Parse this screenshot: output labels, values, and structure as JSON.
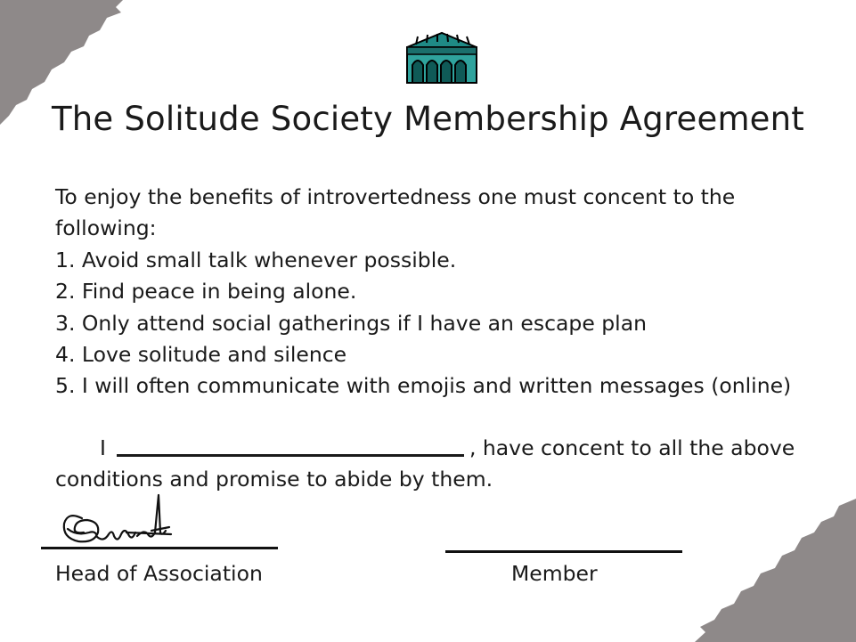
{
  "document": {
    "title": "The Solitude Society Membership Agreement",
    "intro": "To enjoy the benefits of introvertedness one must concent to the following:",
    "rules": [
      "1. Avoid small talk whenever possible.",
      "2. Find peace in being alone.",
      "3. Only attend social gatherings if I have an escape plan",
      "4. Love solitude and silence",
      "5. I will often communicate with emojis and written messages (online)"
    ],
    "pledge_prefix": "I",
    "pledge_suffix": ", have concent to all the above conditions and promise to abide by them.",
    "signatures": {
      "head_label": "Head of Association",
      "member_label": "Member"
    }
  },
  "icons": {
    "logo": "building-clipart-icon"
  },
  "colors": {
    "corner_paint": "#8e8989",
    "logo_teal": "#1f8a86",
    "text": "#1a1a1a"
  }
}
